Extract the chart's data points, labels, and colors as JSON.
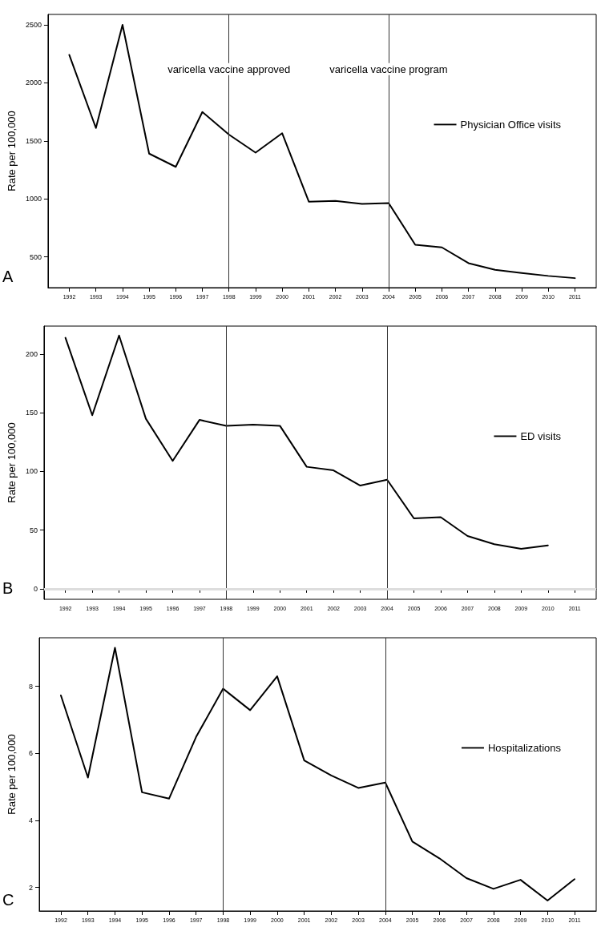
{
  "chart_data": [
    {
      "type": "line",
      "ylabel": "Rate per 100,000",
      "x": [
        1992,
        1993,
        1994,
        1995,
        1996,
        1997,
        1998,
        1999,
        2000,
        2001,
        2002,
        2003,
        2004,
        2005,
        2006,
        2007,
        2008,
        2009,
        2010,
        2011
      ],
      "series": [
        {
          "name": "Physician Office visits",
          "color": "#000000",
          "values": [
            2241,
            1611,
            2500,
            1390,
            1276,
            1749,
            1554,
            1399,
            1566,
            976,
            983,
            957,
            964,
            604,
            582,
            446,
            389,
            361,
            336,
            317
          ]
        }
      ],
      "xlim": [
        1991.2,
        2011.8
      ],
      "xticks": [
        1992,
        1993,
        1994,
        1995,
        1996,
        1997,
        1998,
        1999,
        2000,
        2001,
        2002,
        2003,
        2004,
        2005,
        2006,
        2007,
        2008,
        2009,
        2010,
        2011
      ],
      "ylim": [
        235,
        2590
      ],
      "yticks": [
        500,
        1000,
        1500,
        2000,
        2500
      ],
      "legend": "right",
      "grid": false,
      "ref_lines": [
        {
          "axis": "x",
          "value": 1998,
          "label": "varicella vaccine approved",
          "color": "#333333"
        },
        {
          "axis": "x",
          "value": 2004,
          "label": "varicella vaccine program",
          "color": "#333333"
        }
      ],
      "annotations": [
        "A"
      ]
    },
    {
      "type": "line",
      "ylabel": "Rate per 100,000",
      "series": [
        {
          "name": "ED visits",
          "color": "#000000",
          "x": [
            1992,
            1993,
            1994,
            1995,
            1996,
            1997,
            1998,
            1999,
            2000,
            2001,
            2002,
            2003,
            2004,
            2005,
            2006,
            2007,
            2008,
            2009,
            2010
          ],
          "values": [
            214,
            148,
            216,
            145,
            109,
            144,
            139,
            140,
            139,
            104,
            101,
            88,
            93,
            60,
            61,
            45,
            38,
            34,
            37
          ]
        }
      ],
      "xlim": [
        1991.2,
        2011.8
      ],
      "xticks": [
        1992,
        1993,
        1994,
        1995,
        1996,
        1997,
        1998,
        1999,
        2000,
        2001,
        2002,
        2003,
        2004,
        2005,
        2006,
        2007,
        2008,
        2009,
        2010,
        2011
      ],
      "ylim": [
        -9,
        224
      ],
      "yticks": [
        0,
        50,
        100,
        150,
        200
      ],
      "legend": "right",
      "grid": false,
      "ref_lines": [
        {
          "axis": "x",
          "value": 1998,
          "color": "#333333"
        },
        {
          "axis": "x",
          "value": 2004,
          "color": "#333333"
        },
        {
          "axis": "y",
          "value": 0,
          "color": "#dddddd"
        }
      ],
      "annotations": [
        "B"
      ]
    },
    {
      "type": "line",
      "ylabel": "Rate per 100,000",
      "x": [
        1992,
        1993,
        1994,
        1995,
        1996,
        1997,
        1998,
        1999,
        2000,
        2001,
        2002,
        2003,
        2004,
        2005,
        2006,
        2007,
        2008,
        2009,
        2010,
        2011
      ],
      "series": [
        {
          "name": "Hospitalizations",
          "color": "#000000",
          "values": [
            7.73,
            5.28,
            9.15,
            4.84,
            4.65,
            6.49,
            7.93,
            7.29,
            8.3,
            5.79,
            5.34,
            4.97,
            5.13,
            3.37,
            2.87,
            2.28,
            1.96,
            2.23,
            1.61,
            2.25
          ]
        }
      ],
      "xlim": [
        1991.2,
        2011.8
      ],
      "xticks": [
        1992,
        1993,
        1994,
        1995,
        1996,
        1997,
        1998,
        1999,
        2000,
        2001,
        2002,
        2003,
        2004,
        2005,
        2006,
        2007,
        2008,
        2009,
        2010,
        2011
      ],
      "ylim": [
        1.3,
        9.45
      ],
      "yticks": [
        2,
        4,
        6,
        8
      ],
      "legend": "right",
      "grid": false,
      "ref_lines": [
        {
          "axis": "x",
          "value": 1998,
          "color": "#333333"
        },
        {
          "axis": "x",
          "value": 2004,
          "color": "#333333"
        }
      ],
      "annotations": [
        "C"
      ]
    }
  ]
}
